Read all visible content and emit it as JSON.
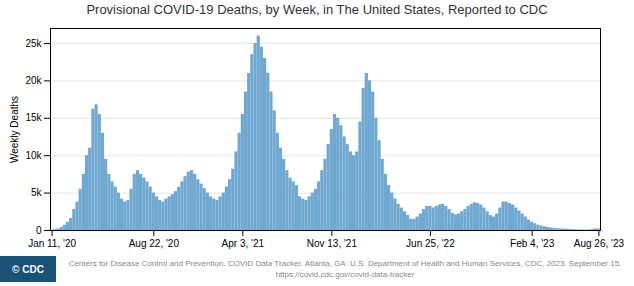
{
  "chart_data": {
    "type": "bar",
    "title": "Provisional COVID-19 Deaths, by Week, in The United States, Reported to CDC",
    "ylabel": "Weekly Deaths",
    "annotations": [
      "Centers for Disease Control and Prevention. COVID Data Tracker. Atlanta, GA: U.S. Department of Health and Human Services, CDC, 2023. September 15. https://covid.cdc.gov/covid-data-tracker",
      "© CDC"
    ],
    "color": "#6fa8d0",
    "grid": true,
    "ylim": [
      0,
      27000
    ],
    "yticks": [
      0,
      {
        "value": 5000,
        "label": "5k"
      },
      {
        "value": 10000,
        "label": "10k"
      },
      {
        "value": 15000,
        "label": "15k"
      },
      {
        "value": 20000,
        "label": "20k"
      },
      {
        "value": 25000,
        "label": "25k"
      }
    ],
    "categories": [
      "Jan 11, '20",
      null,
      null,
      null,
      null,
      null,
      null,
      null,
      null,
      null,
      null,
      null,
      null,
      null,
      null,
      null,
      null,
      null,
      null,
      null,
      null,
      null,
      null,
      null,
      null,
      null,
      null,
      null,
      null,
      null,
      null,
      null,
      "Aug 22, '20",
      null,
      null,
      null,
      null,
      null,
      null,
      null,
      null,
      null,
      null,
      null,
      null,
      null,
      null,
      null,
      null,
      null,
      null,
      null,
      null,
      null,
      null,
      null,
      null,
      null,
      null,
      null,
      "Apr 3, '21",
      null,
      null,
      null,
      null,
      null,
      null,
      null,
      null,
      null,
      null,
      null,
      null,
      null,
      null,
      null,
      null,
      null,
      null,
      null,
      null,
      null,
      null,
      null,
      null,
      null,
      null,
      null,
      "Nov 13, '21",
      null,
      null,
      null,
      null,
      null,
      null,
      null,
      null,
      null,
      null,
      null,
      null,
      null,
      null,
      null,
      null,
      null,
      null,
      null,
      null,
      null,
      null,
      null,
      null,
      null,
      null,
      null,
      null,
      null,
      null,
      "Jun 25, '22",
      null,
      null,
      null,
      null,
      null,
      null,
      null,
      null,
      null,
      null,
      null,
      null,
      null,
      null,
      null,
      null,
      null,
      null,
      null,
      null,
      null,
      null,
      null,
      null,
      null,
      null,
      null,
      null,
      null,
      null,
      null,
      "Feb 4, '23",
      null,
      null,
      null,
      null,
      null,
      null,
      null,
      null,
      null,
      null,
      null,
      null,
      null,
      null,
      null,
      null,
      null,
      null,
      null,
      null,
      "Aug 26, '23"
    ],
    "values": [
      50,
      100,
      200,
      400,
      700,
      1100,
      1600,
      2800,
      3800,
      5500,
      7500,
      10000,
      11000,
      16200,
      16800,
      15500,
      13000,
      9500,
      7500,
      6500,
      5800,
      5000,
      4200,
      3800,
      4000,
      5500,
      7500,
      8000,
      7500,
      7000,
      6500,
      5800,
      5000,
      4500,
      4000,
      3800,
      4200,
      4500,
      4800,
      5200,
      5800,
      6500,
      7200,
      7800,
      8000,
      7500,
      6800,
      6200,
      5600,
      5000,
      4500,
      4200,
      4000,
      4500,
      5000,
      5800,
      6800,
      8200,
      10500,
      13000,
      15500,
      18500,
      21000,
      23500,
      25000,
      26000,
      24500,
      23000,
      21000,
      18500,
      16000,
      13000,
      11000,
      9500,
      8000,
      7000,
      6500,
      6000,
      4500,
      4200,
      4000,
      4500,
      5000,
      5500,
      6500,
      8000,
      9500,
      11500,
      13500,
      15500,
      15000,
      14000,
      12500,
      11500,
      10500,
      10000,
      10500,
      14500,
      19000,
      21000,
      20000,
      18500,
      15000,
      12000,
      9500,
      7500,
      6000,
      5000,
      4200,
      3500,
      3000,
      2500,
      2000,
      1500,
      1500,
      1800,
      2200,
      2800,
      3200,
      3200,
      3000,
      3200,
      3400,
      3500,
      3200,
      2800,
      2300,
      2100,
      2200,
      2500,
      2800,
      3200,
      3500,
      3700,
      3600,
      3400,
      3000,
      2500,
      2000,
      1800,
      2200,
      3000,
      3800,
      3800,
      3600,
      3400,
      3000,
      2600,
      2200,
      1800,
      1400,
      1100,
      900,
      700,
      600,
      500,
      400,
      350,
      300,
      250,
      200,
      180,
      160,
      140,
      120,
      100,
      80,
      60,
      50,
      80,
      150,
      200,
      200
    ]
  }
}
